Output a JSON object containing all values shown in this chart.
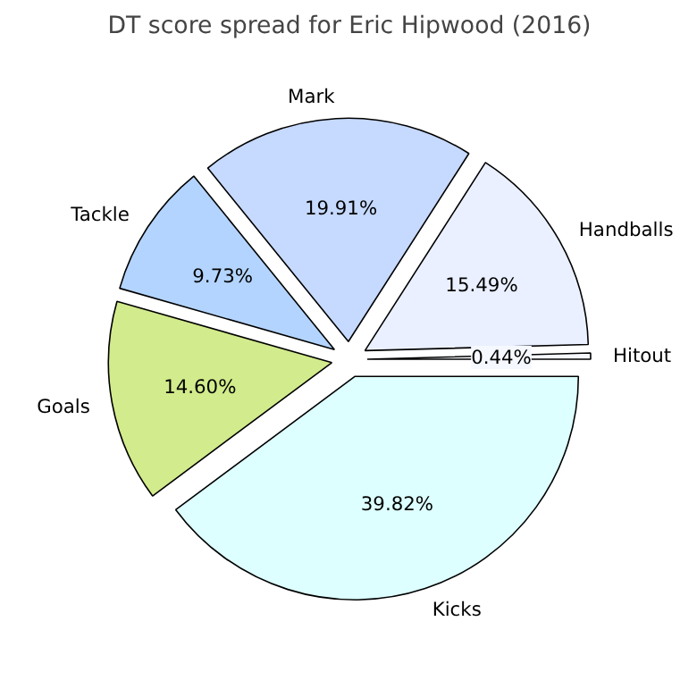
{
  "chart_data": {
    "type": "pie",
    "title": "DT score spread for Eric Hipwood (2016)",
    "categories": [
      "Hitout",
      "Handballs",
      "Mark",
      "Tackle",
      "Goals",
      "Kicks"
    ],
    "values": [
      0.44,
      15.49,
      19.91,
      9.73,
      14.6,
      39.82
    ],
    "value_labels": [
      "0.44%",
      "15.49%",
      "19.91%",
      "9.73%",
      "14.60%",
      "39.82%"
    ],
    "colors": [
      "#f5f8ff",
      "#eaf0ff",
      "#c6d9ff",
      "#b3d4ff",
      "#d2eb8c",
      "#ddffff"
    ]
  }
}
